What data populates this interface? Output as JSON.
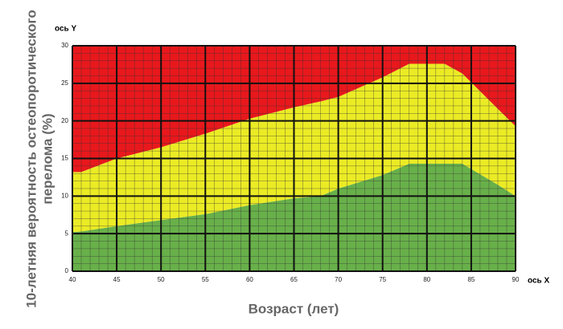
{
  "chart_data": {
    "type": "stacked_area",
    "y_axis_name": "ось Y",
    "x_axis_name": "ось X",
    "ylabel": [
      "10-летняя вероятность остеопоротического",
      "перелома (%)"
    ],
    "xlabel": "Возраст (лет)",
    "x": [
      40,
      41,
      45,
      50,
      55,
      60,
      65,
      68,
      70,
      75,
      78,
      80,
      82,
      84,
      88,
      90
    ],
    "series": [
      {
        "color": "#68b04a",
        "values": [
          5.2,
          5.3,
          6.0,
          6.8,
          7.6,
          8.8,
          9.7,
          10.0,
          11.0,
          12.8,
          14.3,
          14.3,
          14.3,
          14.3,
          11.5,
          10.0
        ]
      },
      {
        "color": "#ebeb25",
        "values": [
          8.0,
          7.9,
          9.0,
          9.7,
          10.7,
          11.5,
          12.1,
          12.6,
          12.2,
          13.0,
          13.3,
          13.3,
          13.3,
          12.0,
          10.1,
          9.3
        ]
      },
      {
        "color": "#e8181c",
        "values": [
          16.8,
          16.8,
          15.0,
          13.5,
          11.7,
          9.7,
          8.2,
          7.4,
          6.8,
          4.2,
          2.4,
          2.4,
          2.4,
          3.7,
          8.4,
          10.7
        ]
      }
    ],
    "xlim": [
      40,
      90
    ],
    "xticks": [
      40,
      45,
      50,
      55,
      60,
      65,
      70,
      75,
      80,
      85,
      90
    ],
    "ylim": [
      0,
      30
    ],
    "yticks": [
      0,
      5,
      10,
      15,
      20,
      25,
      30
    ],
    "grid": true,
    "minor_grid_step": 1
  }
}
